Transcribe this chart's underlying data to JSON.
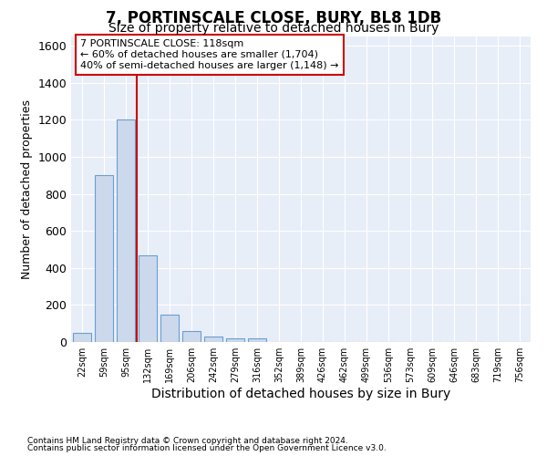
{
  "title": "7, PORTINSCALE CLOSE, BURY, BL8 1DB",
  "subtitle": "Size of property relative to detached houses in Bury",
  "xlabel": "Distribution of detached houses by size in Bury",
  "ylabel": "Number of detached properties",
  "footnote1": "Contains HM Land Registry data © Crown copyright and database right 2024.",
  "footnote2": "Contains public sector information licensed under the Open Government Licence v3.0.",
  "categories": [
    "22sqm",
    "59sqm",
    "95sqm",
    "132sqm",
    "169sqm",
    "206sqm",
    "242sqm",
    "279sqm",
    "316sqm",
    "352sqm",
    "389sqm",
    "426sqm",
    "462sqm",
    "499sqm",
    "536sqm",
    "573sqm",
    "609sqm",
    "646sqm",
    "683sqm",
    "719sqm",
    "756sqm"
  ],
  "values": [
    50,
    900,
    1200,
    470,
    150,
    60,
    30,
    18,
    18,
    0,
    0,
    0,
    0,
    0,
    0,
    0,
    0,
    0,
    0,
    0,
    0
  ],
  "bar_color": "#ccd9ec",
  "bar_edge_color": "#6a9fcf",
  "vline_x": 2.5,
  "vline_color": "#cc0000",
  "annotation_line1": "7 PORTINSCALE CLOSE: 118sqm",
  "annotation_line2": "← 60% of detached houses are smaller (1,704)",
  "annotation_line3": "40% of semi-detached houses are larger (1,148) →",
  "annotation_box_color": "#ffffff",
  "annotation_box_edge": "#cc0000",
  "ylim": [
    0,
    1650
  ],
  "yticks": [
    0,
    200,
    400,
    600,
    800,
    1000,
    1200,
    1400,
    1600
  ],
  "bg_color": "#ffffff",
  "plot_bg_color": "#e8eef8",
  "grid_color": "#ffffff",
  "title_fontsize": 12,
  "subtitle_fontsize": 10,
  "ylabel_fontsize": 9,
  "xlabel_fontsize": 10
}
